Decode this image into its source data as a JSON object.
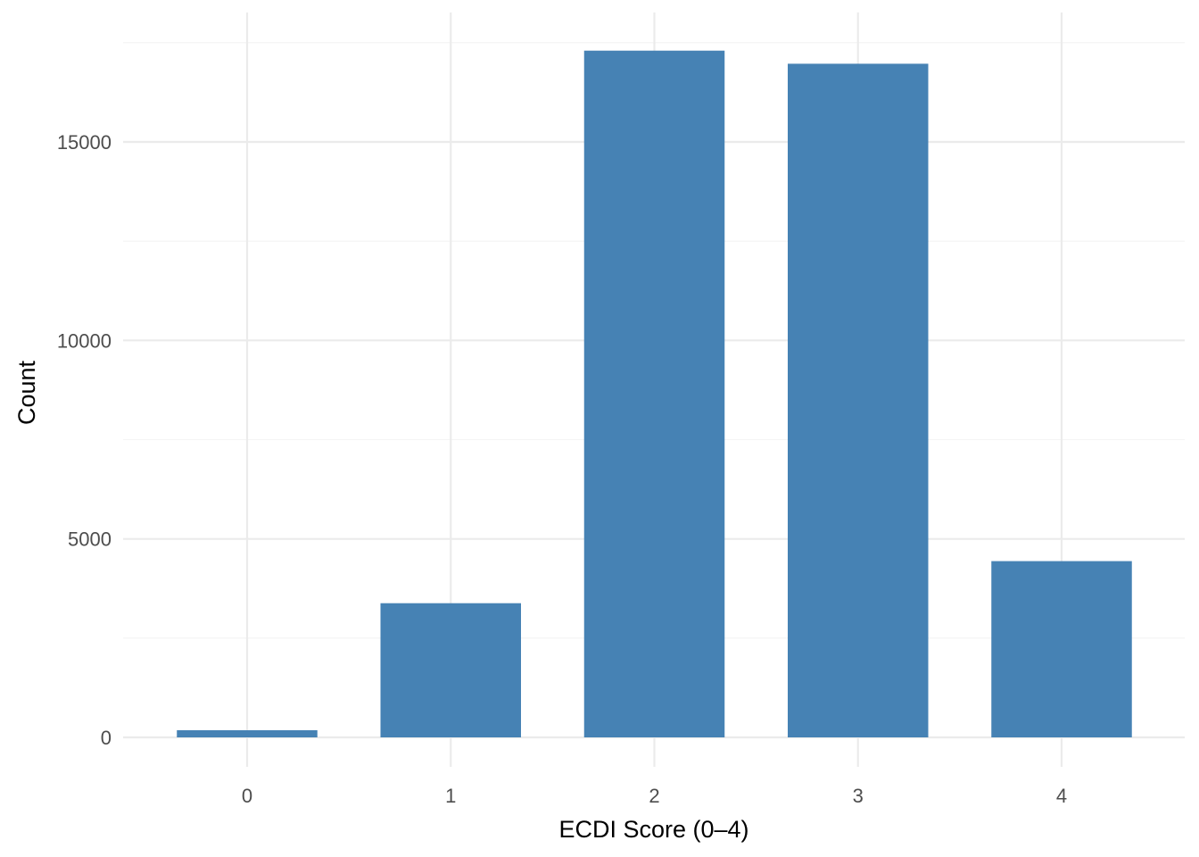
{
  "chart_data": {
    "type": "bar",
    "categories": [
      "0",
      "1",
      "2",
      "3",
      "4"
    ],
    "values": [
      180,
      3380,
      17300,
      16970,
      4440
    ],
    "xlabel": "ECDI Score (0–4)",
    "ylabel": "Count",
    "ylim": [
      0,
      17900
    ],
    "yticks": [
      0,
      5000,
      10000,
      15000
    ],
    "ytick_labels": [
      "0",
      "5000",
      "10000",
      "15000"
    ],
    "grid": true,
    "bar_color": "#4682b4",
    "legend": "none"
  }
}
